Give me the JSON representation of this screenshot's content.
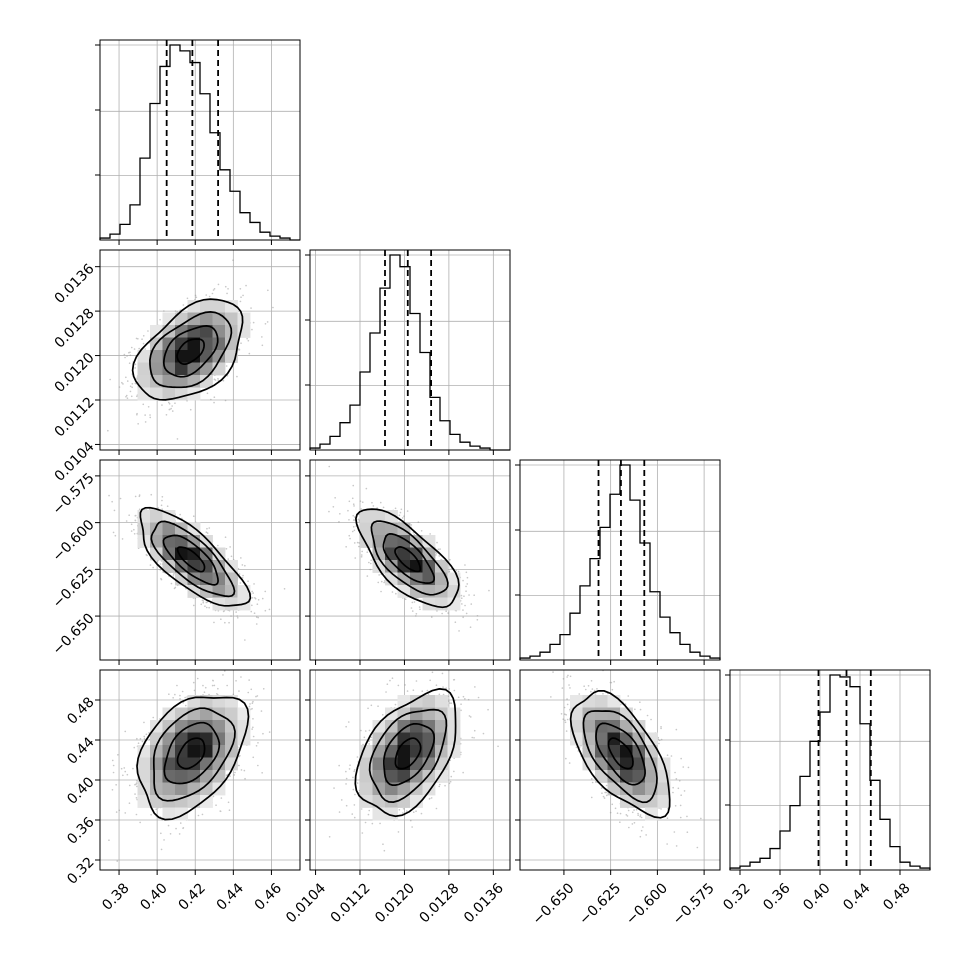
{
  "chart_data": {
    "type": "corner",
    "title": "",
    "parameters": [
      {
        "label": "",
        "range": [
          0.37,
          0.475
        ],
        "ticks": [
          0.38,
          0.4,
          0.42,
          0.44,
          0.46
        ],
        "tick_labels": [
          "0.38",
          "0.40",
          "0.42",
          "0.44",
          "0.46"
        ],
        "quantiles": [
          0.405,
          0.4185,
          0.432
        ],
        "hist_bins": 20,
        "hist_values": [
          1,
          3,
          8,
          18,
          42,
          70,
          89,
          100,
          97,
          91,
          75,
          55,
          36,
          25,
          14,
          9,
          4,
          2,
          1,
          0
        ]
      },
      {
        "label": "",
        "range": [
          0.0103,
          0.0139
        ],
        "ticks": [
          0.0104,
          0.0112,
          0.012,
          0.0128,
          0.0136
        ],
        "tick_labels": [
          "0.0104",
          "0.0112",
          "0.0120",
          "0.0128",
          "0.0136"
        ],
        "quantiles": [
          0.01165,
          0.01206,
          0.01248
        ],
        "hist_bins": 20,
        "hist_values": [
          1,
          3,
          7,
          14,
          23,
          40,
          60,
          83,
          100,
          94,
          70,
          50,
          27,
          15,
          8,
          4,
          2,
          1,
          0,
          0
        ]
      },
      {
        "label": "",
        "range": [
          -0.6735,
          -0.5665
        ],
        "ticks": [
          -0.65,
          -0.625,
          -0.6,
          -0.575
        ],
        "tick_labels": [
          "−0.650",
          "−0.625",
          "−0.600",
          "−0.575"
        ],
        "left_tick_labels": [
          "−0.575",
          "−0.600",
          "−0.625",
          "−0.650"
        ],
        "left_ticks": [
          -0.575,
          -0.6,
          -0.625,
          -0.65
        ],
        "quantiles": [
          -0.6315,
          -0.6195,
          -0.607
        ],
        "hist_bins": 20,
        "hist_values": [
          1,
          2,
          4,
          8,
          13,
          24,
          38,
          52,
          68,
          85,
          100,
          82,
          60,
          35,
          22,
          14,
          8,
          4,
          2,
          1
        ]
      },
      {
        "label": "",
        "range": [
          0.31,
          0.51
        ],
        "ticks": [
          0.32,
          0.36,
          0.4,
          0.44,
          0.48
        ],
        "tick_labels": [
          "0.32",
          "0.36",
          "0.40",
          "0.44",
          "0.48"
        ],
        "quantiles": [
          0.3985,
          0.4265,
          0.4508
        ],
        "hist_bins": 20,
        "hist_values": [
          1,
          2,
          4,
          6,
          11,
          20,
          33,
          48,
          66,
          81,
          100,
          99,
          94,
          75,
          46,
          26,
          12,
          4,
          2,
          1
        ]
      }
    ],
    "pairs": [
      {
        "x_param": 0,
        "y_param": 1,
        "center": [
          0.4175,
          0.01208
        ],
        "sd": [
          0.0135,
          0.00043
        ],
        "corr": 0.45
      },
      {
        "x_param": 0,
        "y_param": 2,
        "center": [
          0.418,
          -0.6195
        ],
        "sd": [
          0.0135,
          0.0125
        ],
        "corr": -0.75
      },
      {
        "x_param": 1,
        "y_param": 2,
        "center": [
          0.01206,
          -0.6195
        ],
        "sd": [
          0.00043,
          0.0125
        ],
        "corr": -0.7
      },
      {
        "x_param": 0,
        "y_param": 3,
        "center": [
          0.418,
          0.4265
        ],
        "sd": [
          0.0135,
          0.029
        ],
        "corr": 0.4
      },
      {
        "x_param": 1,
        "y_param": 3,
        "center": [
          0.01206,
          0.4265
        ],
        "sd": [
          0.00043,
          0.029
        ],
        "corr": 0.45
      },
      {
        "x_param": 2,
        "y_param": 3,
        "center": [
          -0.6195,
          0.4265
        ],
        "sd": [
          0.0125,
          0.029
        ],
        "corr": -0.6
      }
    ],
    "contour_levels_sigma": [
      0.5,
      1.0,
      1.5,
      2.0
    ],
    "grid": true,
    "quantile_line_style": "dashed"
  }
}
